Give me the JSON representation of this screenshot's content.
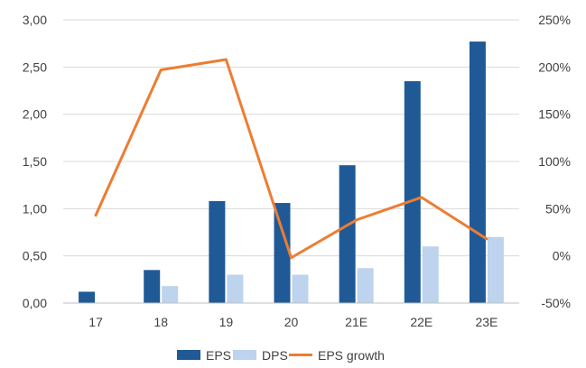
{
  "chart_data": {
    "type": "bar",
    "categories": [
      "17",
      "18",
      "19",
      "20",
      "21E",
      "22E",
      "23E"
    ],
    "series": [
      {
        "name": "EPS",
        "kind": "bar",
        "axis": "left",
        "color": "#1F5A96",
        "values": [
          0.12,
          0.35,
          1.08,
          1.06,
          1.46,
          2.35,
          2.77
        ]
      },
      {
        "name": "DPS",
        "kind": "bar",
        "axis": "left",
        "color": "#BDD3EE",
        "values": [
          0.0,
          0.18,
          0.3,
          0.3,
          0.37,
          0.6,
          0.7
        ]
      },
      {
        "name": "EPS growth",
        "kind": "line",
        "axis": "right",
        "color": "#ED7D31",
        "values": [
          43,
          197,
          208,
          -2,
          38,
          62,
          18
        ]
      }
    ],
    "y_left": {
      "min": 0,
      "max": 3,
      "step": 0.5,
      "tick_labels": [
        "0,00",
        "0,50",
        "1,00",
        "1,50",
        "2,00",
        "2,50",
        "3,00"
      ]
    },
    "y_right": {
      "min": -50,
      "max": 250,
      "step": 50,
      "tick_labels": [
        "-50%",
        "0%",
        "50%",
        "100%",
        "150%",
        "200%",
        "250%"
      ]
    },
    "grid": true,
    "legend_position": "bottom"
  }
}
